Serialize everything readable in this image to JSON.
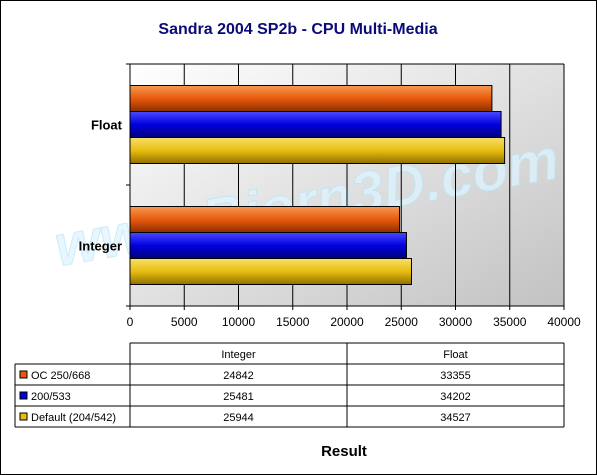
{
  "chart_data": {
    "type": "bar",
    "orientation": "horizontal",
    "title": "Sandra 2004 SP2b - CPU Multi-Media",
    "xlabel": "Result",
    "ylabel": "",
    "categories": [
      "Float",
      "Integer"
    ],
    "data_table_columns": [
      "Integer",
      "Float"
    ],
    "xlim": [
      0,
      40000
    ],
    "x_ticks": [
      0,
      5000,
      10000,
      15000,
      20000,
      25000,
      30000,
      35000,
      40000
    ],
    "grid": true,
    "legend": "data table below chart",
    "series": [
      {
        "name": "OC 250/668",
        "color": "#e85a0c",
        "values": {
          "Integer": 24842,
          "Float": 33355
        },
        "table_values": [
          "24842",
          "33355"
        ]
      },
      {
        "name": "200/533",
        "color": "#0000e0",
        "values": {
          "Integer": 25481,
          "Float": 34202
        },
        "table_values": [
          "25481",
          "34202"
        ]
      },
      {
        "name": "Default (204/542)",
        "color": "#e8bd10",
        "values": {
          "Integer": 25944,
          "Float": 34527
        },
        "table_values": [
          "25944",
          "34527"
        ]
      }
    ]
  },
  "watermark": "www.Bjorn3D.com"
}
